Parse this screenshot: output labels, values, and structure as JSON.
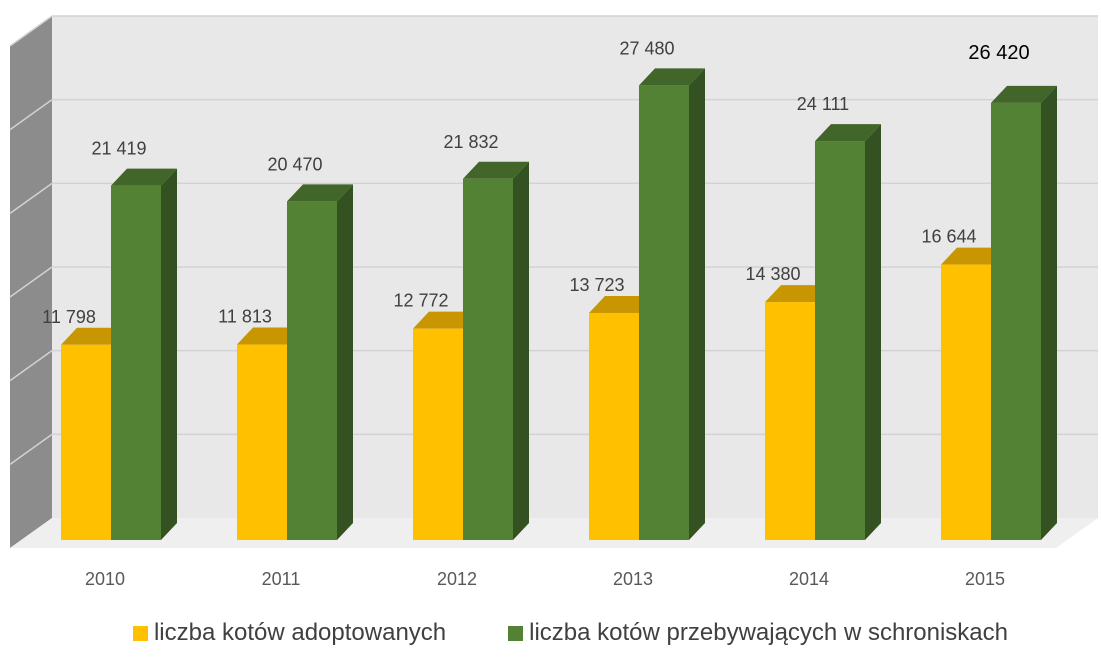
{
  "chart_data": {
    "type": "bar",
    "style": "3d-clustered-column",
    "categories": [
      "2010",
      "2011",
      "2012",
      "2013",
      "2014",
      "2015"
    ],
    "series": [
      {
        "name": "liczba kotów adoptowanych",
        "values": [
          11798,
          11813,
          12772,
          13723,
          14380,
          16644
        ],
        "labels": [
          "11 798",
          "11 813",
          "12 772",
          "13 723",
          "14 380",
          "16 644"
        ],
        "color": "#FFC000"
      },
      {
        "name": "liczba kotów przebywających w schroniskach",
        "values": [
          21419,
          20470,
          21832,
          27480,
          24111,
          26420
        ],
        "labels": [
          "21 419",
          "20 470",
          "21 832",
          "27 480",
          "24 111",
          "26 420"
        ],
        "color": "#548235"
      }
    ],
    "ylim": [
      0,
      30000
    ],
    "grid": true,
    "legend_position": "bottom"
  }
}
